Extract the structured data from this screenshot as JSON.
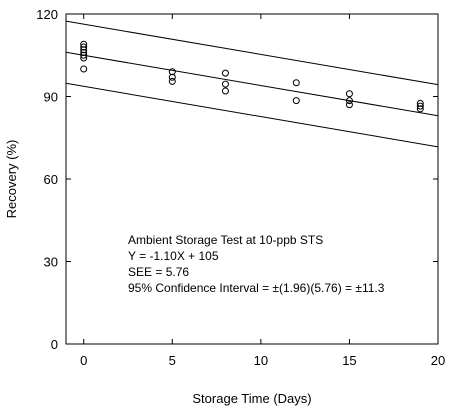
{
  "chart_data": {
    "type": "scatter",
    "xlabel": "Storage Time (Days)",
    "ylabel": "Recovery (%)",
    "xlim": [
      -1,
      20
    ],
    "ylim": [
      0,
      120
    ],
    "xticks": [
      0,
      5,
      10,
      15,
      20
    ],
    "yticks": [
      0,
      30,
      60,
      90,
      120
    ],
    "grid": false,
    "points": [
      {
        "x": 0,
        "y": 109
      },
      {
        "x": 0,
        "y": 108
      },
      {
        "x": 0,
        "y": 107
      },
      {
        "x": 0,
        "y": 106
      },
      {
        "x": 0,
        "y": 105
      },
      {
        "x": 0,
        "y": 104
      },
      {
        "x": 0,
        "y": 100
      },
      {
        "x": 5,
        "y": 99
      },
      {
        "x": 5,
        "y": 97
      },
      {
        "x": 5,
        "y": 95.5
      },
      {
        "x": 8,
        "y": 98.5
      },
      {
        "x": 8,
        "y": 94.5
      },
      {
        "x": 8,
        "y": 92
      },
      {
        "x": 12,
        "y": 95
      },
      {
        "x": 12,
        "y": 88.5
      },
      {
        "x": 15,
        "y": 91
      },
      {
        "x": 15,
        "y": 88.5
      },
      {
        "x": 15,
        "y": 87
      },
      {
        "x": 19,
        "y": 87.5
      },
      {
        "x": 19,
        "y": 86.5
      },
      {
        "x": 19,
        "y": 85.5
      }
    ],
    "lines": [
      {
        "x": [
          -1,
          20
        ],
        "y": [
          117.4,
          94.3
        ]
      },
      {
        "x": [
          -1,
          20
        ],
        "y": [
          106.1,
          83.0
        ]
      },
      {
        "x": [
          -1,
          20
        ],
        "y": [
          94.8,
          71.7
        ]
      }
    ],
    "annotations": [
      "Ambient Storage Test at 10-ppb STS",
      "Y = -1.10X + 105",
      "SEE = 5.76",
      "95% Confidence Interval = ±(1.96)(5.76) = ±11.3"
    ]
  }
}
